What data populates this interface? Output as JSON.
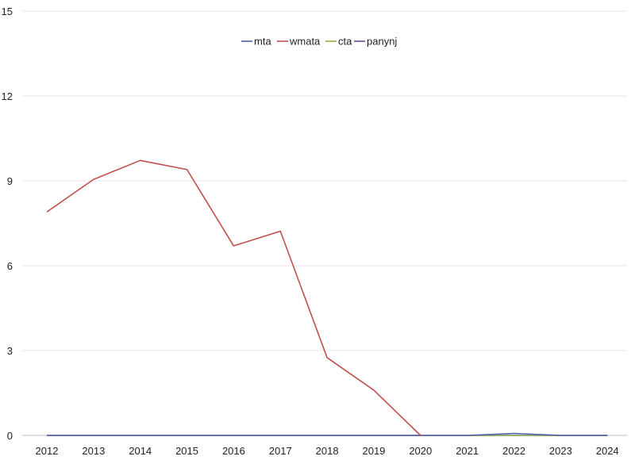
{
  "chart_data": {
    "type": "line",
    "x": [
      "2012",
      "2013",
      "2014",
      "2015",
      "2016",
      "2017",
      "2018",
      "2019",
      "2020",
      "2021",
      "2022",
      "2023",
      "2024"
    ],
    "ylim": [
      0,
      15
    ],
    "yticks": [
      0,
      3,
      6,
      9,
      12,
      15
    ],
    "grid": true,
    "legend_position": "top",
    "series": [
      {
        "name": "mta",
        "color": "#4a5fb0",
        "values": [
          0,
          0,
          0,
          0,
          0,
          0,
          0,
          0,
          0,
          0,
          0.07,
          0,
          0
        ]
      },
      {
        "name": "wmata",
        "color": "#c0504d",
        "values": [
          7.9,
          9.05,
          9.72,
          9.4,
          6.7,
          7.22,
          2.75,
          1.6,
          0,
          null,
          null,
          null,
          null
        ]
      },
      {
        "name": "cta",
        "color": "#8fb04a",
        "values": [
          0,
          0,
          0,
          0,
          0,
          0,
          0,
          0,
          0,
          0,
          0,
          0,
          0
        ]
      },
      {
        "name": "panynj",
        "color": "#6a4e94",
        "values": [
          0,
          0,
          0,
          0,
          0,
          0,
          0,
          0,
          0,
          0,
          0,
          0,
          0
        ]
      }
    ]
  }
}
